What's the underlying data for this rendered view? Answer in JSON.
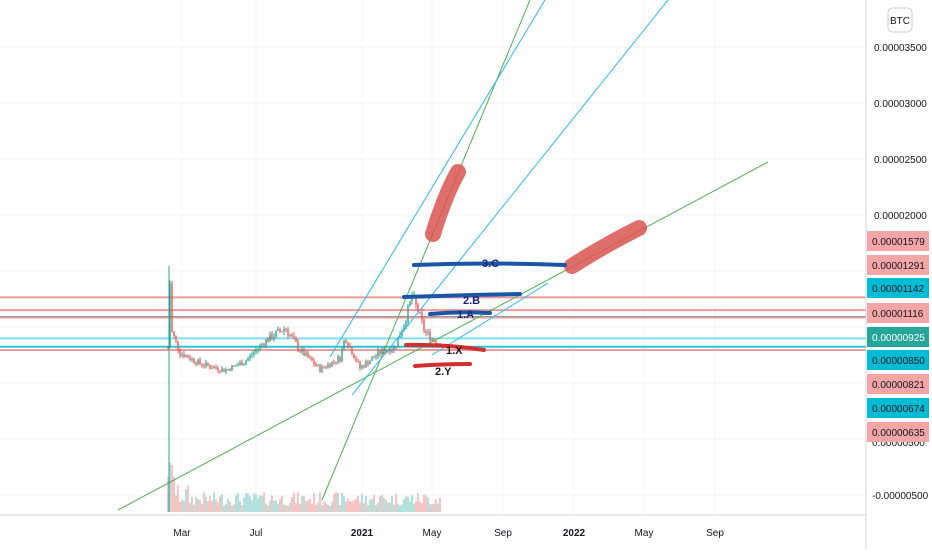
{
  "currency_badge": "BTC",
  "chart_data": {
    "type": "candlestick",
    "y_scale": "linear",
    "y_ticks": [
      "0.00003500",
      "0.00003000",
      "0.00002500",
      "0.00002000",
      "-0.00000500"
    ],
    "x_ticks": [
      {
        "label": "Mar",
        "bold": false
      },
      {
        "label": "Jul",
        "bold": false
      },
      {
        "label": "2021",
        "bold": true
      },
      {
        "label": "May",
        "bold": false
      },
      {
        "label": "Sep",
        "bold": false
      },
      {
        "label": "2022",
        "bold": true
      },
      {
        "label": "May",
        "bold": false
      },
      {
        "label": "Sep",
        "bold": false
      }
    ],
    "price_tags": [
      {
        "value": "0.00001579",
        "style": "red"
      },
      {
        "value": "0.00001291",
        "style": "red"
      },
      {
        "value": "0.00001142",
        "style": "blue"
      },
      {
        "value": "0.00001116",
        "style": "red"
      },
      {
        "value": "0.00000925",
        "style": "teal"
      },
      {
        "value": "0.00000850",
        "style": "blue"
      },
      {
        "value": "0.00000821",
        "style": "red"
      },
      {
        "value": "0.00000674",
        "style": "blue"
      },
      {
        "value": "0.00000635",
        "style": "red"
      }
    ],
    "hidden_tick_partial": "0.00000500",
    "horizontal_levels": [
      {
        "value": 1.291e-05,
        "color": "#ef9a9a"
      },
      {
        "value": 1.178e-05,
        "color": "#ef9a9a"
      },
      {
        "value": 1.116e-05,
        "color": "#26a69a"
      },
      {
        "value": 1.112e-05,
        "color": "#ef9a9a"
      },
      {
        "value": 9.25e-06,
        "color": "#80deea"
      },
      {
        "value": 8.5e-06,
        "color": "#26c6da"
      },
      {
        "value": 8.21e-06,
        "color": "#ef9a9a"
      }
    ],
    "annotations": [
      "3.C",
      "2.B",
      "1.A",
      "1.X",
      "2.Y"
    ],
    "colors": {
      "red_tag": "#f4a5a5",
      "blue_tag": "#00bcd4",
      "teal_tag": "#26a69a",
      "trend_green": "#4caf50",
      "trend_blue": "#29b6f6",
      "marker_blue": "#1a56a8",
      "marker_red": "#d32f2f",
      "highlight_red": "#d9534f"
    }
  }
}
